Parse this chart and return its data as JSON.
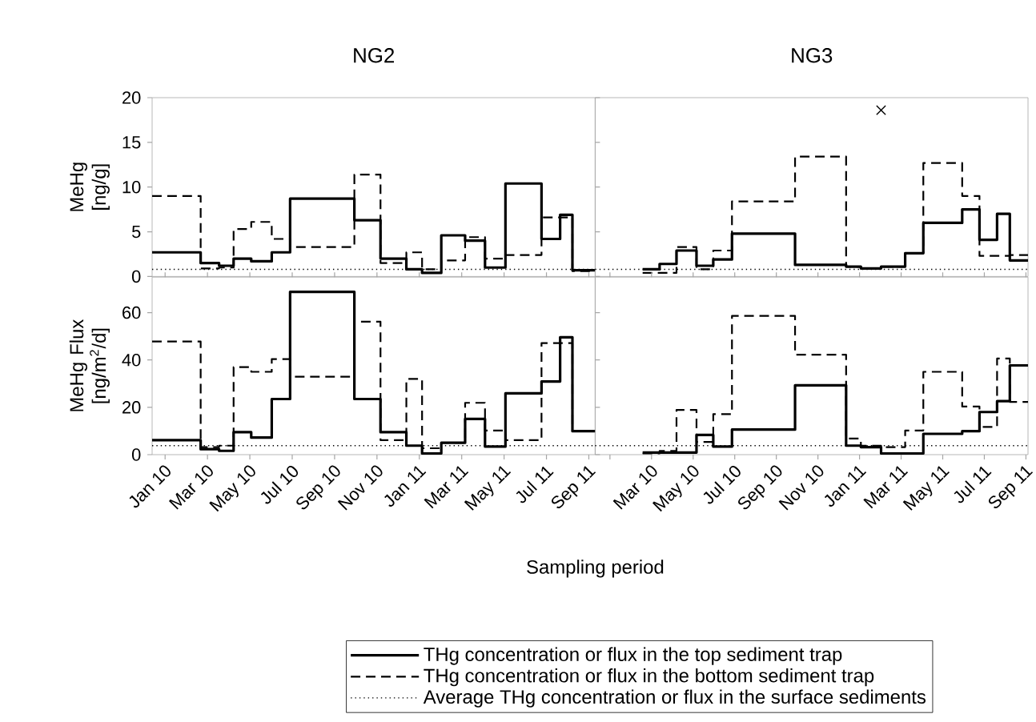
{
  "chart_data": [
    {
      "type": "step",
      "title": "NG2",
      "ylabel": "MeHg [ng/g]",
      "xlim": [
        "2009-12-13",
        "2011-09-10"
      ],
      "ylim": [
        0,
        20
      ],
      "yticks": [
        0,
        5,
        10,
        15,
        20
      ],
      "tick_labels": "y",
      "legend": "bottom",
      "x": [
        "2009-12-13",
        "2010-02-20",
        "2010-03-18",
        "2010-04-08",
        "2010-05-03",
        "2010-06-02",
        "2010-06-28",
        "2010-09-29",
        "2010-11-06",
        "2010-12-13",
        "2011-01-05",
        "2011-02-02",
        "2011-03-06",
        "2011-04-04",
        "2011-05-03",
        "2011-06-24",
        "2011-07-21",
        "2011-08-08",
        "2011-09-10"
      ],
      "series": [
        {
          "name": "THg concentration or flux in the top sediment trap",
          "color": "#000000",
          "line_style": "solid",
          "values": [
            2.7,
            1.5,
            1.2,
            2.0,
            1.7,
            2.7,
            8.7,
            6.3,
            2.0,
            0.8,
            0.4,
            4.6,
            4.0,
            1.0,
            10.4,
            4.2,
            6.9,
            0.7,
            0.7
          ]
        },
        {
          "name": "THg concentration or flux in the bottom sediment trap",
          "color": "#000000",
          "line_style": "dashed",
          "values": [
            9.0,
            0.9,
            1.0,
            5.3,
            6.1,
            4.2,
            3.3,
            11.4,
            1.5,
            2.7,
            0.8,
            1.8,
            4.4,
            2.0,
            2.4,
            6.6,
            6.6,
            0.6,
            0.6
          ]
        },
        {
          "name": "Average THg concentration or flux in the surface sediments",
          "type": "line",
          "color": "#000000",
          "line_style": "dotted",
          "x": [
            "2009-12-13",
            "2011-09-10"
          ],
          "values": [
            0.8,
            0.8
          ]
        }
      ]
    },
    {
      "type": "step",
      "title": "NG3",
      "xlim": [
        "2009-12-10",
        "2011-09-04"
      ],
      "ylim": [
        0,
        20
      ],
      "tick_labels": false,
      "x": [
        "2010-02-17",
        "2010-03-13",
        "2010-04-07",
        "2010-05-06",
        "2010-05-31",
        "2010-06-27",
        "2010-09-28",
        "2010-12-12",
        "2011-01-03",
        "2011-02-02",
        "2011-03-07",
        "2011-04-03",
        "2011-05-30",
        "2011-06-24",
        "2011-07-20",
        "2011-08-08",
        "2011-09-04"
      ],
      "series": [
        {
          "color": "#000000",
          "line_style": "solid",
          "values": [
            0.8,
            1.4,
            2.9,
            1.2,
            1.9,
            4.8,
            1.3,
            1.1,
            0.9,
            1.1,
            2.6,
            6.0,
            7.5,
            4.1,
            7.0,
            1.8,
            1.8
          ]
        },
        {
          "color": "#000000",
          "line_style": "dashed",
          "values": [
            0.4,
            0.4,
            3.3,
            0.8,
            2.9,
            8.4,
            13.4,
            1.1,
            0.9,
            1.1,
            2.6,
            12.7,
            9.0,
            2.3,
            2.3,
            2.4,
            2.4
          ]
        },
        {
          "type": "line",
          "color": "#000000",
          "line_style": "dotted",
          "x": [
            "2009-12-10",
            "2011-09-04"
          ],
          "values": [
            0.8,
            0.8
          ]
        },
        {
          "type": "scatter",
          "color": "#000000",
          "marker": "cross",
          "x": [
            "2011-02-02"
          ],
          "values": [
            18.6
          ]
        }
      ]
    },
    {
      "type": "step",
      "ylabel": "MeHg Flux [ng/m$^{2}$/d]",
      "xlabel": "Sampling period",
      "xlim": [
        "2009-12-13",
        "2011-09-10"
      ],
      "ylim": [
        0,
        75
      ],
      "yticks": [
        0,
        20,
        40,
        60
      ],
      "xticks": [
        {
          "value": "2010-01-01",
          "label": "Jan 10"
        },
        {
          "value": "2010-03-01",
          "label": "Mar 10"
        },
        {
          "value": "2010-05-01",
          "label": "May 10"
        },
        {
          "value": "2010-07-01",
          "label": "Jul 10"
        },
        {
          "value": "2010-09-01",
          "label": "Sep 10"
        },
        {
          "value": "2010-11-01",
          "label": "Nov 10"
        },
        {
          "value": "2011-01-01",
          "label": "Jan 11"
        },
        {
          "value": "2011-03-01",
          "label": "Mar 11"
        },
        {
          "value": "2011-05-01",
          "label": "May 11"
        },
        {
          "value": "2011-07-01",
          "label": "Jul 11"
        },
        {
          "value": "2011-09-01",
          "label": "Sep 11"
        }
      ],
      "x": [
        "2009-12-13",
        "2010-02-20",
        "2010-03-18",
        "2010-04-08",
        "2010-05-03",
        "2010-06-02",
        "2010-06-28",
        "2010-09-29",
        "2010-11-06",
        "2010-12-13",
        "2011-01-05",
        "2011-02-02",
        "2011-03-06",
        "2011-04-04",
        "2011-05-03",
        "2011-06-24",
        "2011-07-21",
        "2011-08-08",
        "2011-09-10"
      ],
      "series": [
        {
          "color": "#000000",
          "line_style": "solid",
          "values": [
            6.1,
            2.3,
            1.6,
            9.5,
            7.2,
            23.5,
            68.8,
            23.5,
            9.5,
            3.8,
            0.5,
            5.0,
            15.1,
            3.4,
            25.9,
            30.9,
            49.6,
            9.9,
            9.9
          ]
        },
        {
          "color": "#000000",
          "line_style": "dashed",
          "values": [
            47.8,
            3.2,
            3.8,
            37.0,
            35.0,
            40.4,
            32.9,
            56.2,
            6.1,
            32.0,
            2.7,
            5.0,
            21.9,
            10.2,
            6.1,
            47.1,
            47.1,
            9.9,
            9.9
          ]
        },
        {
          "type": "line",
          "color": "#000000",
          "line_style": "dotted",
          "x": [
            "2009-12-13",
            "2011-09-10"
          ],
          "values": [
            3.8,
            3.8
          ]
        }
      ]
    },
    {
      "type": "step",
      "xlim": [
        "2009-12-10",
        "2011-09-04"
      ],
      "ylim": [
        0,
        75
      ],
      "tick_labels": "x",
      "xticks": [
        {
          "value": "2010-01-01",
          "label": null
        },
        {
          "value": "2010-03-01",
          "label": "Mar 10"
        },
        {
          "value": "2010-05-01",
          "label": "May 10"
        },
        {
          "value": "2010-07-01",
          "label": "Jul 10"
        },
        {
          "value": "2010-09-01",
          "label": "Sep 10"
        },
        {
          "value": "2010-11-01",
          "label": "Nov 10"
        },
        {
          "value": "2011-01-01",
          "label": "Jan 11"
        },
        {
          "value": "2011-03-01",
          "label": "Mar 11"
        },
        {
          "value": "2011-05-01",
          "label": "May 11"
        },
        {
          "value": "2011-07-01",
          "label": "Jul 11"
        },
        {
          "value": "2011-09-01",
          "label": "Sep 11"
        }
      ],
      "x": [
        "2010-02-17",
        "2010-03-13",
        "2010-04-07",
        "2010-05-06",
        "2010-05-31",
        "2010-06-27",
        "2010-09-28",
        "2010-12-12",
        "2011-01-03",
        "2011-02-02",
        "2011-03-07",
        "2011-04-03",
        "2011-05-30",
        "2011-06-24",
        "2011-07-20",
        "2011-08-08",
        "2011-09-04"
      ],
      "series": [
        {
          "color": "#000000",
          "line_style": "solid",
          "values": [
            0.9,
            0.9,
            0.9,
            8.3,
            3.4,
            10.6,
            29.3,
            3.8,
            3.2,
            0.5,
            0.5,
            8.8,
            9.9,
            18.0,
            22.6,
            37.7,
            37.7
          ]
        },
        {
          "color": "#000000",
          "line_style": "dashed",
          "values": [
            0.5,
            1.6,
            18.9,
            5.4,
            17.1,
            58.6,
            42.2,
            6.8,
            3.8,
            3.2,
            10.2,
            35.0,
            20.3,
            11.7,
            40.6,
            22.3,
            22.3
          ]
        },
        {
          "type": "line",
          "color": "#000000",
          "line_style": "dotted",
          "x": [
            "2009-12-10",
            "2011-09-04"
          ],
          "values": [
            3.8,
            3.8
          ]
        }
      ]
    }
  ]
}
